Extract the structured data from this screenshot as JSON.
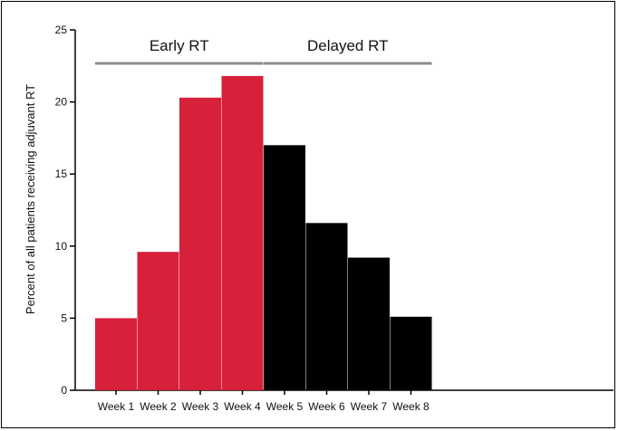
{
  "chart_data": {
    "type": "bar",
    "title": "",
    "xlabel": "",
    "ylabel": "Percent of all patients receiving adjuvant RT",
    "ylim": [
      0,
      25
    ],
    "yticks": [
      "0",
      "5",
      "10",
      "15",
      "20",
      "25"
    ],
    "grid": false,
    "categories": [
      "Week 1",
      "Week 2",
      "Week 3",
      "Week 4",
      "Week 5",
      "Week 6",
      "Week 7",
      "Week 8"
    ],
    "values": [
      5.0,
      9.6,
      20.3,
      21.8,
      17.0,
      11.6,
      9.2,
      5.1
    ],
    "bar_colors": [
      "#d7203a",
      "#d7203a",
      "#d7203a",
      "#d7203a",
      "#000000",
      "#000000",
      "#000000",
      "#000000"
    ],
    "groups": [
      {
        "label": "Early RT",
        "categories": [
          "Week 1",
          "Week 2",
          "Week 3",
          "Week 4"
        ],
        "color": "#d7203a"
      },
      {
        "label": "Delayed RT",
        "categories": [
          "Week 5",
          "Week 6",
          "Week 7",
          "Week 8"
        ],
        "color": "#000000"
      }
    ],
    "group_bracket_color": "#8c8c8c"
  }
}
